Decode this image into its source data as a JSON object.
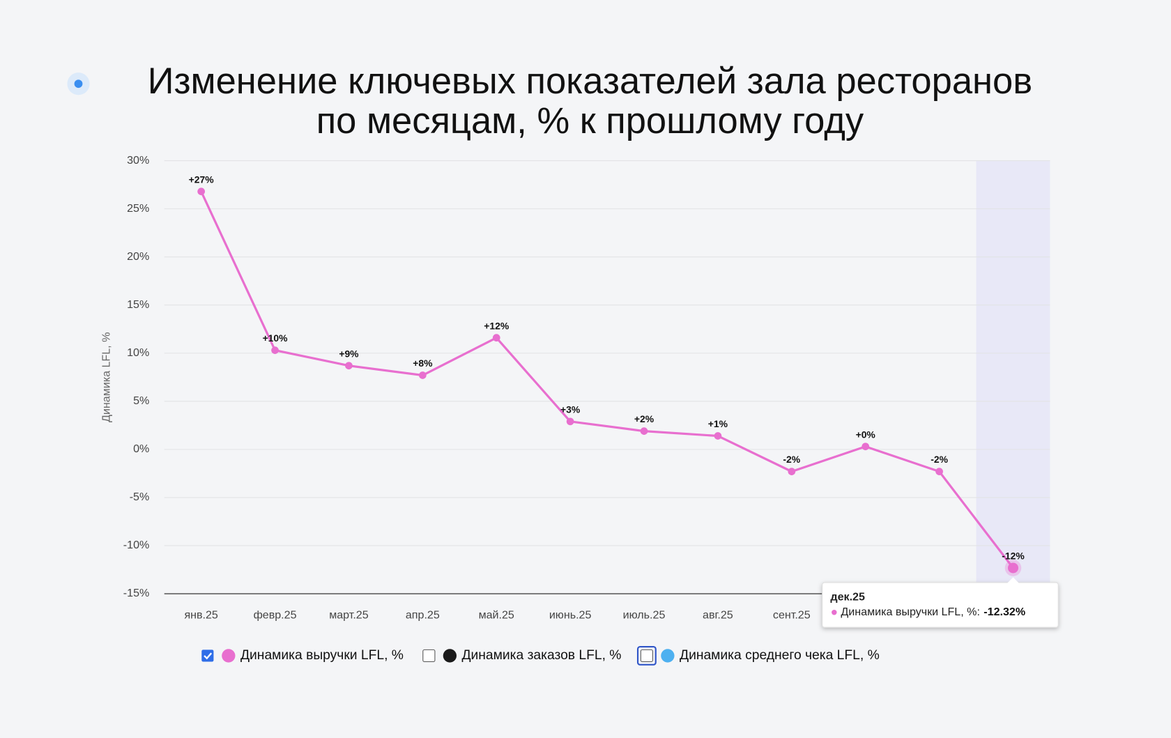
{
  "chart_data": {
    "type": "line",
    "title": [
      "Изменение ключевых показателей зала ресторанов",
      "по месяцам, % к прошлому году"
    ],
    "y_label": "Динамика LFL, %",
    "categories": [
      "янв.25",
      "февр.25",
      "март.25",
      "апр.25",
      "май.25",
      "июнь.25",
      "июль.25",
      "авг.25",
      "сент.25",
      null,
      null,
      null
    ],
    "series": [
      {
        "name": "Динамика выручки LFL, %",
        "color": "#e86fcf",
        "visible": true,
        "values": [
          26.8,
          10.3,
          8.7,
          7.7,
          11.6,
          2.9,
          1.9,
          1.4,
          -2.3,
          0.3,
          -2.3,
          -12.32
        ],
        "value_labels": [
          "+27%",
          "+10%",
          "+9%",
          "+8%",
          "+12%",
          "+3%",
          "+2%",
          "+1%",
          "-2%",
          "+0%",
          "-2%",
          "-12%"
        ]
      },
      {
        "name": "Динамика заказов LFL, %",
        "color": "#1a1a1a",
        "visible": false
      },
      {
        "name": "Динамика среднего чека LFL, %",
        "color": "#4db0f0",
        "visible": false
      }
    ],
    "ylim": [
      -15,
      30
    ],
    "yticks": [
      {
        "value": -15,
        "label": "-15%"
      },
      {
        "value": -10,
        "label": "-10%"
      },
      {
        "value": -5,
        "label": "-5%"
      },
      {
        "value": 0,
        "label": "0%"
      },
      {
        "value": 5,
        "label": "5%"
      },
      {
        "value": 10,
        "label": "10%"
      },
      {
        "value": 15,
        "label": "15%"
      },
      {
        "value": 20,
        "label": "20%"
      },
      {
        "value": 25,
        "label": "25%"
      },
      {
        "value": 30,
        "label": "30%"
      }
    ],
    "grid": true,
    "highlight_index": 11,
    "tooltip": {
      "title": "дек.25",
      "label": "Динамика выручки LFL, %:",
      "value_label": "-12.32%"
    }
  }
}
